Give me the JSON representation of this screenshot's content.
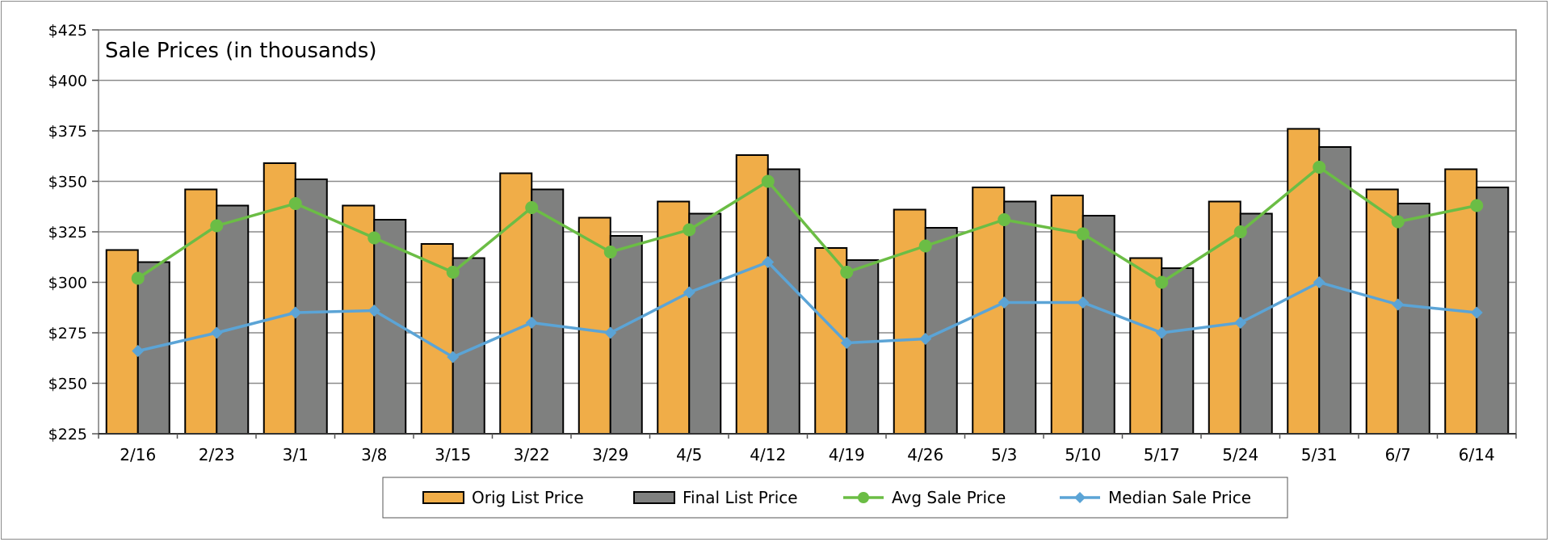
{
  "chart_data": {
    "type": "bar",
    "title": "Sale Prices (in thousands)",
    "xlabel": "",
    "ylabel": "",
    "categories": [
      "2/16",
      "2/23",
      "3/1",
      "3/8",
      "3/15",
      "3/22",
      "3/29",
      "4/5",
      "4/12",
      "4/19",
      "4/26",
      "5/3",
      "5/10",
      "5/17",
      "5/24",
      "5/31",
      "6/7",
      "6/14"
    ],
    "ylim": [
      225,
      425
    ],
    "yticks": [
      225,
      250,
      275,
      300,
      325,
      350,
      375,
      400,
      425
    ],
    "ytick_labels": [
      "$225",
      "$250",
      "$275",
      "$300",
      "$325",
      "$350",
      "$375",
      "$400",
      "$425"
    ],
    "grid": true,
    "legend_position": "bottom",
    "series": [
      {
        "name": "Orig List Price",
        "kind": "bar",
        "color": "#f0ad48",
        "values": [
          316,
          346,
          359,
          338,
          319,
          354,
          332,
          340,
          363,
          317,
          336,
          347,
          343,
          312,
          340,
          376,
          346,
          356
        ]
      },
      {
        "name": "Final List Price",
        "kind": "bar",
        "color": "#7f807f",
        "values": [
          310,
          338,
          351,
          331,
          312,
          346,
          323,
          334,
          356,
          311,
          327,
          340,
          333,
          307,
          334,
          367,
          339,
          347
        ]
      },
      {
        "name": "Avg Sale Price",
        "kind": "line",
        "marker": "circle",
        "color": "#6bbd45",
        "values": [
          302,
          328,
          339,
          322,
          305,
          337,
          315,
          326,
          350,
          305,
          318,
          331,
          324,
          300,
          325,
          357,
          330,
          338
        ]
      },
      {
        "name": "Median Sale Price",
        "kind": "line",
        "marker": "diamond",
        "color": "#5ba4d6",
        "values": [
          266,
          275,
          285,
          286,
          263,
          280,
          275,
          295,
          310,
          270,
          272,
          290,
          290,
          275,
          280,
          300,
          289,
          285
        ]
      }
    ]
  }
}
